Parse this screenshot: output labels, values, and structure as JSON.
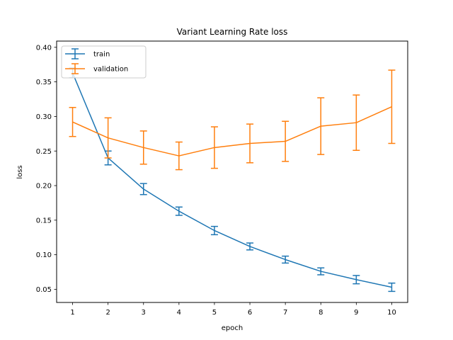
{
  "chart_data": {
    "type": "line",
    "title": "Variant Learning Rate loss",
    "xlabel": "epoch",
    "ylabel": "loss",
    "x": [
      1,
      2,
      3,
      4,
      5,
      6,
      7,
      8,
      9,
      10
    ],
    "xlim": [
      0.55,
      10.45
    ],
    "ylim": [
      0.031,
      0.409
    ],
    "xticks": [
      "1",
      "2",
      "3",
      "4",
      "5",
      "6",
      "7",
      "8",
      "9",
      "10"
    ],
    "yticks": [
      "0.05",
      "0.10",
      "0.15",
      "0.20",
      "0.25",
      "0.30",
      "0.35",
      "0.40"
    ],
    "grid": false,
    "legend_position": "upper left",
    "series": [
      {
        "name": "train",
        "color": "#1f77b4",
        "values": [
          0.363,
          0.24,
          0.195,
          0.163,
          0.135,
          0.112,
          0.093,
          0.076,
          0.064,
          0.053
        ],
        "err": [
          0.007,
          0.01,
          0.008,
          0.006,
          0.006,
          0.005,
          0.005,
          0.005,
          0.006,
          0.006
        ]
      },
      {
        "name": "validation",
        "color": "#ff7f0e",
        "values": [
          0.292,
          0.269,
          0.255,
          0.243,
          0.255,
          0.261,
          0.264,
          0.286,
          0.291,
          0.314
        ],
        "err": [
          0.021,
          0.029,
          0.024,
          0.02,
          0.03,
          0.028,
          0.029,
          0.041,
          0.04,
          0.053
        ]
      }
    ]
  }
}
